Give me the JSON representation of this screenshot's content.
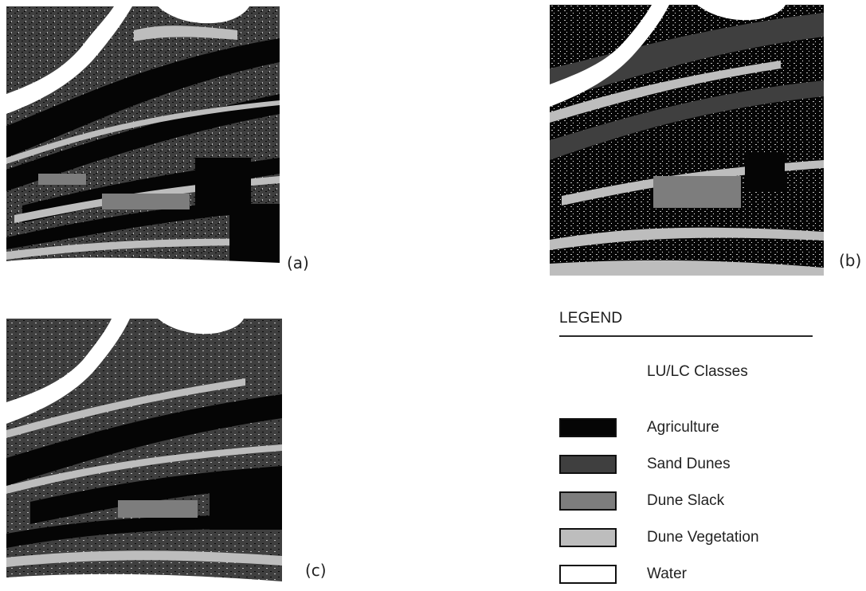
{
  "panels": [
    {
      "id": "a",
      "label": "(a)"
    },
    {
      "id": "b",
      "label": "(b)"
    },
    {
      "id": "c",
      "label": "(c)"
    }
  ],
  "legend": {
    "title": "LEGEND",
    "subtitle": "LU/LC Classes",
    "items": [
      {
        "label": "Agriculture",
        "color": "#050505"
      },
      {
        "label": "Sand Dunes",
        "color": "#3f3f3f"
      },
      {
        "label": "Dune Slack",
        "color": "#7d7d7d"
      },
      {
        "label": "Dune Vegetation",
        "color": "#bdbdbd"
      },
      {
        "label": "Water",
        "color": "#ffffff"
      }
    ]
  }
}
